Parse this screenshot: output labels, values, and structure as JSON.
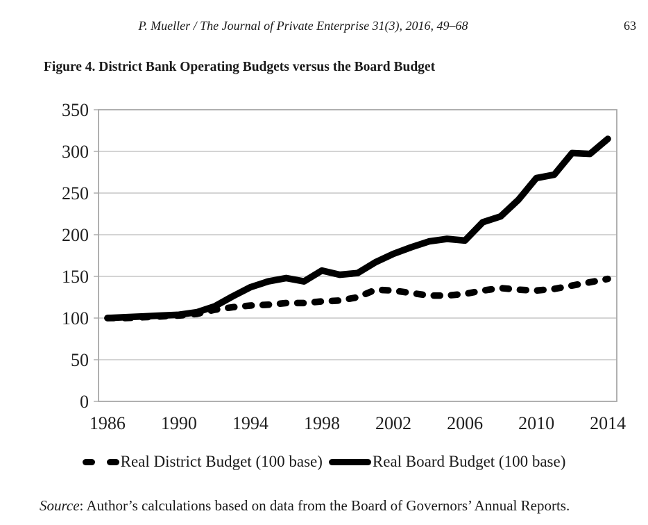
{
  "page": {
    "running_head": "P. Mueller / The Journal of Private Enterprise 31(3), 2016, 49–68",
    "page_number": "63",
    "figure_title": "Figure 4. District Bank Operating Budgets versus the Board Budget",
    "source_label": "Source",
    "source_text": ": Author’s calculations based on data from the Board of Governors’ Annual Reports."
  },
  "chart_data": {
    "type": "line",
    "x": [
      1986,
      1987,
      1988,
      1989,
      1990,
      1991,
      1992,
      1993,
      1994,
      1995,
      1996,
      1997,
      1998,
      1999,
      2000,
      2001,
      2002,
      2003,
      2004,
      2005,
      2006,
      2007,
      2008,
      2009,
      2010,
      2011,
      2012,
      2013,
      2014
    ],
    "series": [
      {
        "name": "Real District Budget (100 base)",
        "style": "dashed",
        "values": [
          100,
          100,
          101,
          102,
          103,
          105,
          110,
          113,
          115,
          116,
          118,
          118,
          120,
          121,
          125,
          134,
          133,
          130,
          127,
          127,
          129,
          133,
          136,
          134,
          133,
          135,
          139,
          143,
          147
        ]
      },
      {
        "name": "Real Board Budget (100 base)",
        "style": "solid",
        "values": [
          100,
          101,
          102,
          103,
          104,
          107,
          114,
          126,
          137,
          144,
          148,
          144,
          157,
          152,
          154,
          167,
          177,
          185,
          192,
          195,
          193,
          215,
          222,
          242,
          268,
          272,
          298,
          297,
          315
        ]
      }
    ],
    "ylim": [
      0,
      350
    ],
    "yticks": [
      0,
      50,
      100,
      150,
      200,
      250,
      300,
      350
    ],
    "xticks": [
      1986,
      1990,
      1994,
      1998,
      2002,
      2006,
      2010,
      2014
    ],
    "grid": "horizontal",
    "legend_position": "bottom",
    "colors": {
      "line": "#000000",
      "grid": "#c6c6c6",
      "border": "#a8a8a8",
      "text": "#1f1f1f"
    }
  }
}
